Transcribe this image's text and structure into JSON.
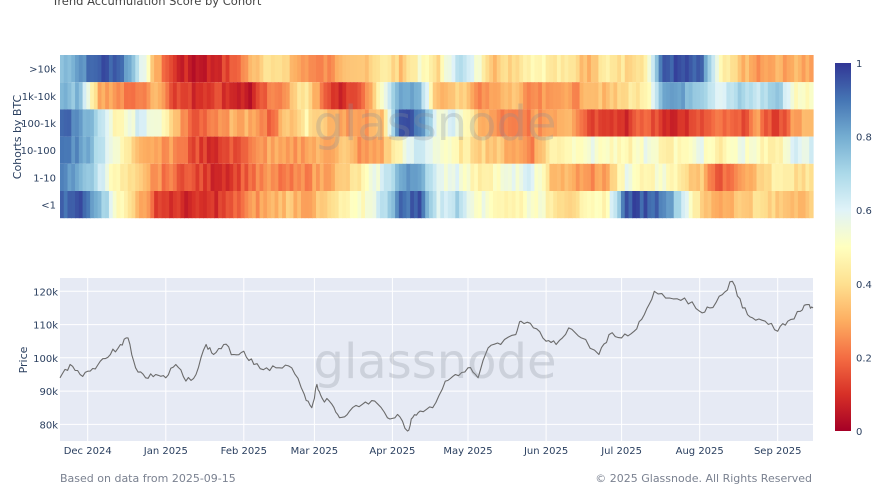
{
  "chart_data": [
    {
      "type": "heatmap",
      "title": "Trend Accumulation Score by Cohort",
      "ylabel": "Cohorts by BTC",
      "rows": [
        ">10k",
        "1k-10k",
        "100-1k",
        "10-100",
        "1-10",
        "<1"
      ],
      "x_range": [
        "2024-11-20",
        "2025-09-15"
      ],
      "colorbar": {
        "min": 0,
        "max": 1,
        "ticks": [
          "1",
          "0.8",
          "0.6",
          "0.4",
          "0.2",
          "0"
        ]
      },
      "colors": {
        "low": "#a50026",
        "mid": "#ffffbf",
        "high": "#313695"
      },
      "cells": {
        ">10k": [
          0.75,
          0.85,
          0.95,
          0.95,
          0.7,
          0.3,
          0.1,
          0.05,
          0.08,
          0.15,
          0.3,
          0.45,
          0.35,
          0.25,
          0.25,
          0.3,
          0.35,
          0.45,
          0.35,
          0.5,
          0.4,
          0.7,
          0.55,
          0.35,
          0.4,
          0.5,
          0.45,
          0.45,
          0.3,
          0.45,
          0.4,
          0.45,
          0.95,
          0.95,
          0.9,
          0.45,
          0.35,
          0.25,
          0.3,
          0.3
        ],
        "1k-10k": [
          0.8,
          0.75,
          0.3,
          0.25,
          0.2,
          0.35,
          0.15,
          0.1,
          0.15,
          0.1,
          0.05,
          0.2,
          0.3,
          0.45,
          0.15,
          0.08,
          0.2,
          0.5,
          0.85,
          0.75,
          0.3,
          0.4,
          0.25,
          0.3,
          0.35,
          0.25,
          0.3,
          0.25,
          0.3,
          0.35,
          0.4,
          0.45,
          0.85,
          0.8,
          0.75,
          0.6,
          0.7,
          0.65,
          0.75,
          0.5
        ],
        "100-1k": [
          0.95,
          0.85,
          0.7,
          0.45,
          0.6,
          0.55,
          0.35,
          0.15,
          0.25,
          0.3,
          0.3,
          0.2,
          0.35,
          0.45,
          0.35,
          0.3,
          0.25,
          0.35,
          0.95,
          0.9,
          0.55,
          0.6,
          0.35,
          0.25,
          0.2,
          0.25,
          0.3,
          0.35,
          0.15,
          0.15,
          0.1,
          0.2,
          0.1,
          0.1,
          0.15,
          0.2,
          0.15,
          0.25,
          0.1,
          0.3
        ],
        "10-100": [
          0.9,
          0.85,
          0.7,
          0.5,
          0.35,
          0.3,
          0.25,
          0.15,
          0.1,
          0.15,
          0.2,
          0.3,
          0.25,
          0.3,
          0.3,
          0.35,
          0.25,
          0.3,
          0.5,
          0.65,
          0.55,
          0.45,
          0.4,
          0.35,
          0.3,
          0.25,
          0.45,
          0.5,
          0.55,
          0.5,
          0.45,
          0.55,
          0.45,
          0.5,
          0.55,
          0.45,
          0.55,
          0.5,
          0.45,
          0.6
        ],
        "1-10": [
          0.85,
          0.8,
          0.65,
          0.45,
          0.35,
          0.25,
          0.2,
          0.15,
          0.1,
          0.12,
          0.2,
          0.25,
          0.2,
          0.25,
          0.3,
          0.35,
          0.45,
          0.6,
          0.8,
          0.85,
          0.55,
          0.6,
          0.45,
          0.5,
          0.55,
          0.6,
          0.35,
          0.3,
          0.25,
          0.3,
          0.55,
          0.45,
          0.55,
          0.4,
          0.35,
          0.15,
          0.3,
          0.35,
          0.45,
          0.4
        ],
        "<1": [
          0.9,
          0.95,
          0.8,
          0.5,
          0.35,
          0.15,
          0.1,
          0.08,
          0.1,
          0.15,
          0.25,
          0.3,
          0.35,
          0.3,
          0.35,
          0.45,
          0.5,
          0.65,
          0.9,
          0.95,
          0.6,
          0.7,
          0.55,
          0.5,
          0.45,
          0.55,
          0.45,
          0.4,
          0.45,
          0.5,
          0.95,
          0.95,
          0.9,
          0.65,
          0.35,
          0.3,
          0.35,
          0.4,
          0.35,
          0.35
        ]
      }
    },
    {
      "type": "line",
      "ylabel": "Price",
      "x_ticks": [
        "Dec 2024",
        "Jan 2025",
        "Feb 2025",
        "Mar 2025",
        "Apr 2025",
        "May 2025",
        "Jun 2025",
        "Jul 2025",
        "Aug 2025",
        "Sep 2025"
      ],
      "y_ticks": [
        "80k",
        "90k",
        "100k",
        "110k",
        "120k"
      ],
      "ylim": [
        75000,
        124000
      ],
      "grid": true,
      "color": "#6b6b6b",
      "x": [
        "2024-11-20",
        "2024-11-24",
        "2024-11-28",
        "2024-12-02",
        "2024-12-06",
        "2024-12-10",
        "2024-12-14",
        "2024-12-17",
        "2024-12-20",
        "2024-12-24",
        "2024-12-28",
        "2025-01-01",
        "2025-01-05",
        "2025-01-09",
        "2025-01-13",
        "2025-01-17",
        "2025-01-20",
        "2025-01-24",
        "2025-01-28",
        "2025-02-01",
        "2025-02-05",
        "2025-02-10",
        "2025-02-15",
        "2025-02-20",
        "2025-02-25",
        "2025-02-28",
        "2025-03-02",
        "2025-03-04",
        "2025-03-08",
        "2025-03-11",
        "2025-03-15",
        "2025-03-20",
        "2025-03-25",
        "2025-03-30",
        "2025-04-03",
        "2025-04-07",
        "2025-04-09",
        "2025-04-12",
        "2025-04-17",
        "2025-04-22",
        "2025-04-26",
        "2025-05-01",
        "2025-05-05",
        "2025-05-09",
        "2025-05-14",
        "2025-05-20",
        "2025-05-22",
        "2025-05-27",
        "2025-06-01",
        "2025-06-05",
        "2025-06-10",
        "2025-06-15",
        "2025-06-22",
        "2025-06-26",
        "2025-07-01",
        "2025-07-06",
        "2025-07-10",
        "2025-07-14",
        "2025-07-20",
        "2025-07-26",
        "2025-08-01",
        "2025-08-05",
        "2025-08-10",
        "2025-08-14",
        "2025-08-18",
        "2025-08-22",
        "2025-08-27",
        "2025-09-01",
        "2025-09-05",
        "2025-09-10",
        "2025-09-13",
        "2025-09-15"
      ],
      "y": [
        94000,
        98000,
        95000,
        96000,
        99000,
        101000,
        104000,
        106000,
        97000,
        94000,
        95000,
        94000,
        98000,
        93000,
        95000,
        104000,
        101000,
        104000,
        101000,
        102000,
        98000,
        97000,
        97000,
        97000,
        89000,
        85000,
        92000,
        88000,
        86000,
        82000,
        84000,
        86000,
        87000,
        82000,
        83000,
        78000,
        82000,
        84000,
        85000,
        93000,
        95000,
        97000,
        94000,
        103000,
        104000,
        107000,
        111000,
        109000,
        105000,
        104000,
        109000,
        106000,
        101000,
        107000,
        106000,
        108000,
        113000,
        120000,
        118000,
        118000,
        114000,
        115000,
        119000,
        123000,
        115000,
        112000,
        111000,
        108000,
        111000,
        114000,
        116000,
        115000
      ]
    }
  ],
  "watermark": "glassnode",
  "footer": {
    "left": "Based on data from 2025-09-15",
    "right": "© 2025 Glassnode. All Rights Reserved"
  }
}
